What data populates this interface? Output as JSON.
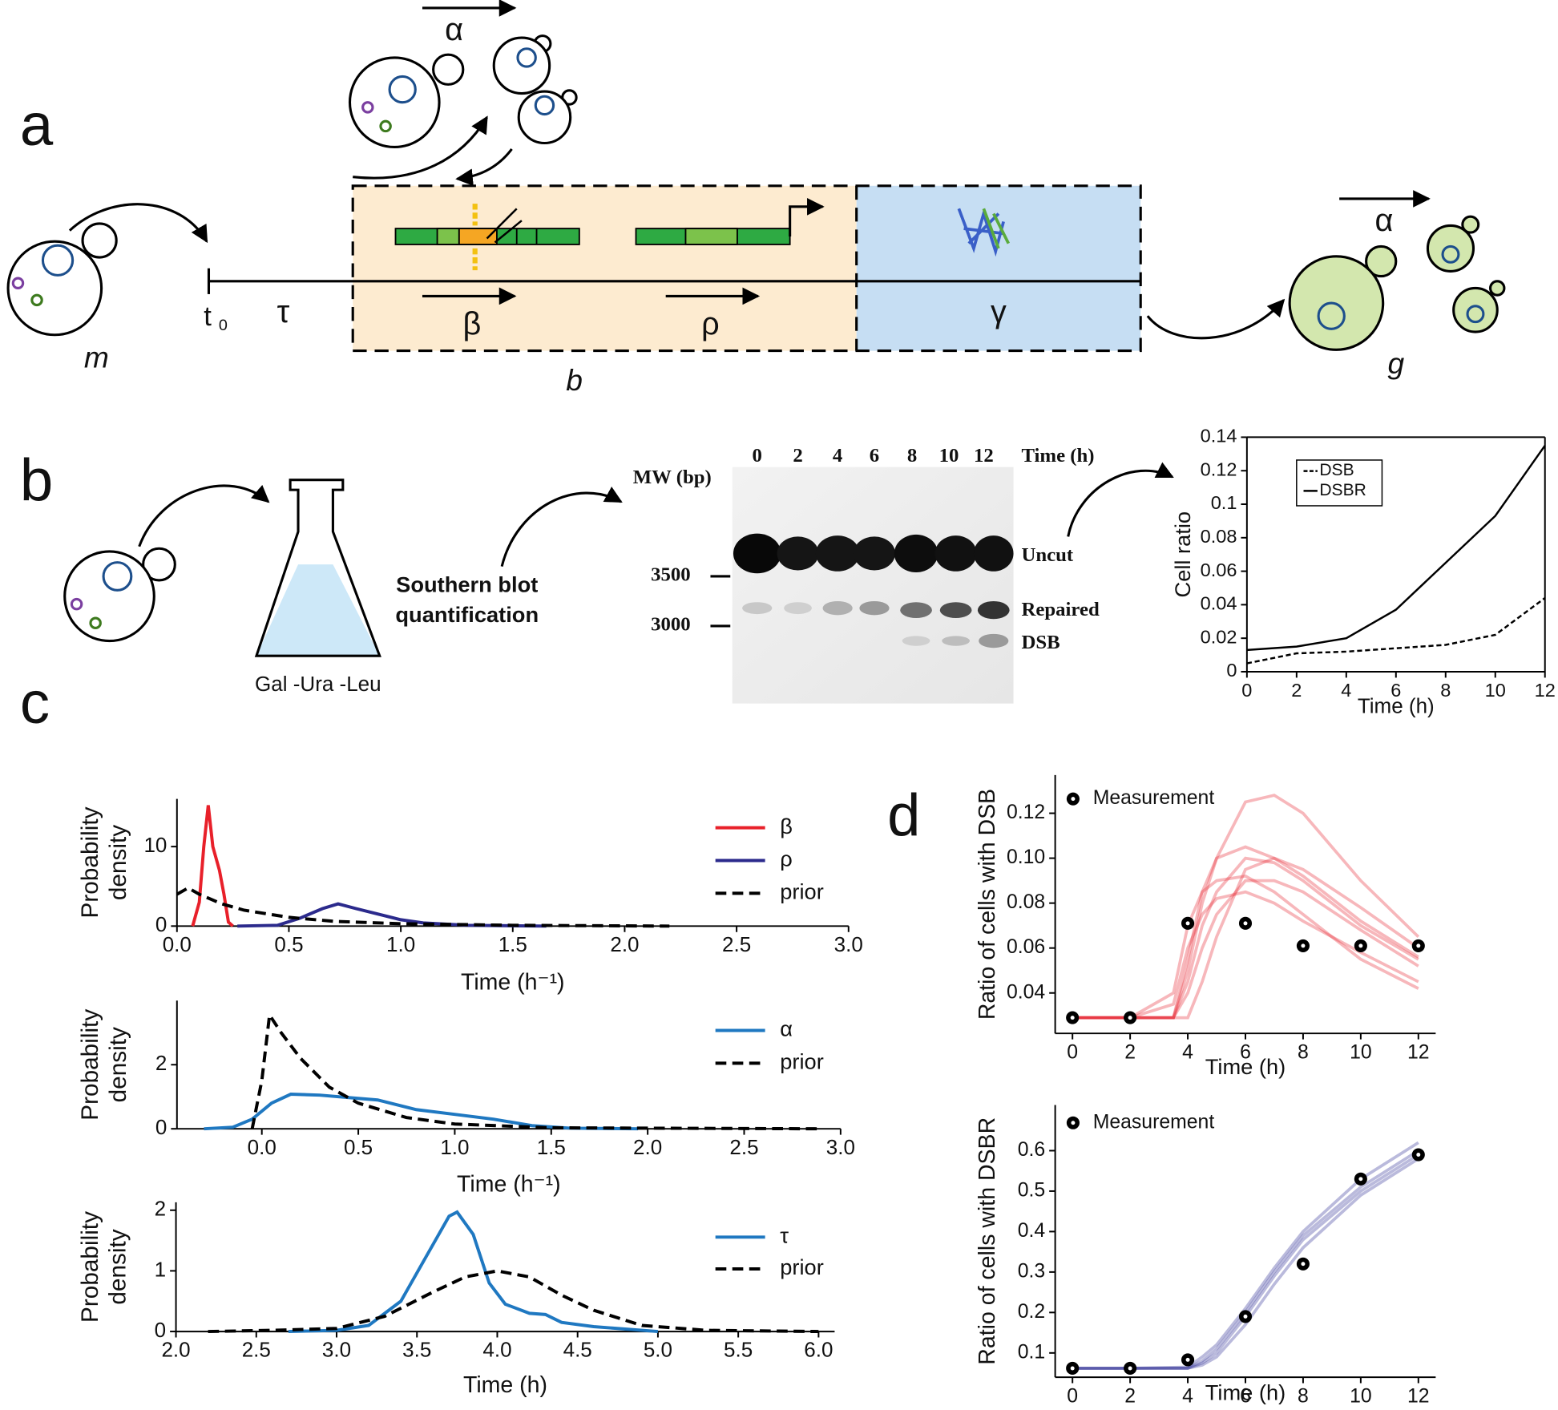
{
  "diagram": {
    "panels": [
      "a",
      "b",
      "c",
      "d"
    ],
    "a": {
      "cells": [
        "m",
        "b",
        "g"
      ],
      "t_start": "t",
      "t_sub": "0",
      "tau": "τ",
      "beta": "β",
      "rho": "ρ",
      "gamma": "γ",
      "alpha_top": "α",
      "alpha_right": "α"
    },
    "b": {
      "medium": "Gal -Ura -Leu",
      "method": [
        "Southern blot",
        "quantification"
      ],
      "gel": {
        "lanes": [
          "0",
          "2",
          "4",
          "6",
          "8",
          "10",
          "12"
        ],
        "time_label": "Time (h)",
        "mw_label": "MW (bp)",
        "markers": [
          "3500",
          "3000"
        ],
        "bands": [
          "Uncut",
          "Repaired",
          "DSB"
        ]
      }
    }
  },
  "chart_data": [
    {
      "type": "line",
      "xlabel": "Time (h)",
      "ylabel": [
        "Cell ratio"
      ],
      "xlim": [
        0,
        12
      ],
      "ylim": [
        0,
        0.14
      ],
      "xticks": [
        0,
        2,
        4,
        6,
        8,
        10,
        12
      ],
      "yticks": [
        0,
        0.02,
        0.04,
        0.06,
        0.08,
        0.1,
        0.12,
        0.14
      ],
      "legend": "upper left",
      "series": [
        {
          "name": "DSB",
          "color": "#000000",
          "linestyle": "dashed",
          "x": [
            0,
            2,
            4,
            6,
            8,
            10,
            12
          ],
          "values": [
            0.005,
            0.011,
            0.012,
            0.014,
            0.016,
            0.022,
            0.044
          ]
        },
        {
          "name": "DSBR",
          "color": "#000000",
          "linestyle": "solid",
          "x": [
            0,
            2,
            4,
            6,
            8,
            10,
            12
          ],
          "values": [
            0.013,
            0.015,
            0.02,
            0.037,
            0.065,
            0.093,
            0.135
          ]
        }
      ]
    },
    {
      "type": "line",
      "xlabel": "Time (h⁻¹)",
      "ylabel": [
        "Probability",
        "density"
      ],
      "xlim": [
        0,
        3
      ],
      "ylim": [
        0,
        16
      ],
      "xticks": [
        {
          "value": 0,
          "label": "0.0"
        },
        0.5,
        {
          "value": 1,
          "label": "1.0"
        },
        1.5,
        {
          "value": 2,
          "label": "2.0"
        },
        2.5,
        {
          "value": 3,
          "label": "3.0"
        }
      ],
      "yticks": [
        0,
        10
      ],
      "legend": "upper right",
      "series": [
        {
          "name": "β",
          "color": "#e8202a",
          "linestyle": "solid",
          "x": [
            0.07,
            0.1,
            0.12,
            0.14,
            0.16,
            0.19,
            0.21,
            0.23,
            0.25
          ],
          "values": [
            0,
            3,
            10,
            15.2,
            10,
            7,
            4,
            0.5,
            0
          ]
        },
        {
          "name": "ρ",
          "color": "#2b2a8c",
          "linestyle": "solid",
          "x": [
            0.27,
            0.45,
            0.55,
            0.65,
            0.72,
            0.8,
            0.9,
            1.0,
            1.1,
            1.3,
            1.65
          ],
          "values": [
            0,
            0.1,
            1,
            2.2,
            2.8,
            2.2,
            1.5,
            0.8,
            0.4,
            0.1,
            0
          ]
        },
        {
          "name": "prior",
          "color": "#000000",
          "linestyle": "dashed",
          "x": [
            0,
            0.05,
            0.1,
            0.2,
            0.3,
            0.5,
            0.7,
            1.0,
            1.5,
            2.2
          ],
          "values": [
            4,
            4.8,
            4,
            2.8,
            2,
            1.1,
            0.6,
            0.3,
            0.1,
            0
          ]
        }
      ]
    },
    {
      "type": "line",
      "xlabel": "Time (h⁻¹)",
      "ylabel": [
        "Probability",
        "density"
      ],
      "xlim": [
        -0.44,
        3
      ],
      "ylim": [
        0,
        4
      ],
      "xticks": [
        {
          "value": 0,
          "label": "0.0"
        },
        0.5,
        {
          "value": 1,
          "label": "1.0"
        },
        1.5,
        {
          "value": 2,
          "label": "2.0"
        },
        2.5,
        {
          "value": 3,
          "label": "3.0"
        }
      ],
      "yticks": [
        0,
        2
      ],
      "legend": "upper right",
      "series": [
        {
          "name": "α",
          "color": "#1f78c1",
          "linestyle": "solid",
          "x": [
            -0.3,
            -0.15,
            -0.05,
            0.05,
            0.15,
            0.3,
            0.5,
            0.6,
            0.8,
            1.0,
            1.2,
            1.4,
            1.6,
            1.95
          ],
          "values": [
            0,
            0.05,
            0.3,
            0.8,
            1.08,
            1.05,
            0.95,
            0.9,
            0.6,
            0.45,
            0.3,
            0.1,
            0.02,
            0
          ]
        },
        {
          "name": "prior",
          "color": "#000000",
          "linestyle": "dashed",
          "x": [
            -0.05,
            0,
            0.04,
            0.1,
            0.2,
            0.35,
            0.5,
            0.75,
            1.0,
            1.5,
            2.9
          ],
          "values": [
            0,
            1.5,
            3.55,
            3,
            2.2,
            1.3,
            0.8,
            0.35,
            0.15,
            0.03,
            0
          ]
        }
      ]
    },
    {
      "type": "line",
      "xlabel": "Time (h)",
      "ylabel": [
        "Probability",
        "density"
      ],
      "xlim": [
        2,
        6.1
      ],
      "ylim": [
        0,
        2.13
      ],
      "xticks": [
        {
          "value": 2,
          "label": "2.0"
        },
        2.5,
        {
          "value": 3,
          "label": "3.0"
        },
        3.5,
        {
          "value": 4,
          "label": "4.0"
        },
        4.5,
        {
          "value": 5,
          "label": "5.0"
        },
        5.5,
        {
          "value": 6,
          "label": "6.0"
        }
      ],
      "yticks": [
        0,
        1,
        2
      ],
      "legend": "upper right",
      "series": [
        {
          "name": "τ",
          "color": "#1f78c1",
          "linestyle": "solid",
          "x": [
            2.7,
            3.0,
            3.2,
            3.4,
            3.55,
            3.7,
            3.75,
            3.85,
            3.95,
            4.05,
            4.2,
            4.3,
            4.4,
            4.6,
            5.0
          ],
          "values": [
            0,
            0.02,
            0.1,
            0.5,
            1.2,
            1.9,
            1.97,
            1.6,
            0.8,
            0.45,
            0.3,
            0.28,
            0.15,
            0.08,
            0
          ]
        },
        {
          "name": "prior",
          "color": "#000000",
          "linestyle": "dashed",
          "x": [
            2.2,
            2.6,
            3.0,
            3.3,
            3.6,
            3.8,
            4.0,
            4.2,
            4.4,
            4.6,
            4.9,
            5.3,
            6.0
          ],
          "values": [
            0,
            0.02,
            0.05,
            0.25,
            0.65,
            0.9,
            1.0,
            0.9,
            0.6,
            0.35,
            0.1,
            0.02,
            0
          ]
        }
      ]
    },
    {
      "type": "line",
      "xlabel": "Time (h)",
      "ylabel": [
        "Ratio of cells with DSB"
      ],
      "xlim": [
        -0.6,
        12.6
      ],
      "ylim": [
        0.022,
        0.137
      ],
      "xticks": [
        0,
        2,
        4,
        6,
        8,
        10,
        12
      ],
      "yticks": [
        0.04,
        0.06,
        0.08,
        {
          "value": 0.1,
          "label": "0.10"
        },
        0.12
      ],
      "legend": "upper left",
      "sample_curves": {
        "color": "#e8323c",
        "x": [
          0,
          2,
          3.5,
          4,
          4.5,
          5,
          6,
          7,
          8,
          10,
          12
        ],
        "curves": [
          [
            0.029,
            0.029,
            0.029,
            0.05,
            0.08,
            0.1,
            0.125,
            0.128,
            0.12,
            0.09,
            0.065
          ],
          [
            0.029,
            0.029,
            0.029,
            0.045,
            0.07,
            0.085,
            0.1,
            0.098,
            0.09,
            0.07,
            0.055
          ],
          [
            0.029,
            0.029,
            0.035,
            0.06,
            0.075,
            0.082,
            0.085,
            0.08,
            0.072,
            0.058,
            0.045
          ],
          [
            0.029,
            0.029,
            0.029,
            0.04,
            0.06,
            0.075,
            0.09,
            0.09,
            0.085,
            0.068,
            0.052
          ],
          [
            0.029,
            0.029,
            0.029,
            0.029,
            0.045,
            0.065,
            0.095,
            0.1,
            0.095,
            0.078,
            0.06
          ],
          [
            0.029,
            0.029,
            0.04,
            0.07,
            0.085,
            0.09,
            0.092,
            0.085,
            0.075,
            0.055,
            0.042
          ],
          [
            0.029,
            0.029,
            0.029,
            0.055,
            0.085,
            0.1,
            0.105,
            0.1,
            0.092,
            0.072,
            0.056
          ]
        ]
      },
      "series": [
        {
          "name": "Measurement",
          "type": "scatter",
          "color": "#000000",
          "x": [
            0,
            2,
            4,
            6,
            8,
            10,
            12
          ],
          "values": [
            0.029,
            0.029,
            0.071,
            0.071,
            0.061,
            0.061,
            0.061
          ]
        }
      ]
    },
    {
      "type": "line",
      "xlabel": "Time (h)",
      "ylabel": [
        "Ratio of cells with DSBR"
      ],
      "xlim": [
        -0.6,
        12.6
      ],
      "ylim": [
        0.04,
        0.713
      ],
      "xticks": [
        0,
        2,
        4,
        6,
        8,
        10,
        12
      ],
      "yticks": [
        0.1,
        0.2,
        0.3,
        0.4,
        0.5,
        0.6
      ],
      "legend": "upper left",
      "sample_curves": {
        "color": "#3a3a9c",
        "x": [
          0,
          2,
          4,
          4.5,
          5,
          6,
          7,
          8,
          10,
          12
        ],
        "curves": [
          [
            0.062,
            0.062,
            0.062,
            0.08,
            0.11,
            0.2,
            0.3,
            0.39,
            0.51,
            0.6
          ],
          [
            0.062,
            0.062,
            0.062,
            0.07,
            0.09,
            0.17,
            0.27,
            0.36,
            0.49,
            0.58
          ],
          [
            0.062,
            0.062,
            0.065,
            0.09,
            0.12,
            0.21,
            0.31,
            0.4,
            0.53,
            0.62
          ],
          [
            0.062,
            0.062,
            0.062,
            0.075,
            0.1,
            0.19,
            0.29,
            0.38,
            0.5,
            0.59
          ]
        ]
      },
      "series": [
        {
          "name": "Measurement",
          "type": "scatter",
          "color": "#000000",
          "x": [
            0,
            2,
            4,
            6,
            8,
            10,
            12
          ],
          "values": [
            0.062,
            0.062,
            0.083,
            0.19,
            0.32,
            0.53,
            0.59
          ]
        }
      ]
    }
  ]
}
